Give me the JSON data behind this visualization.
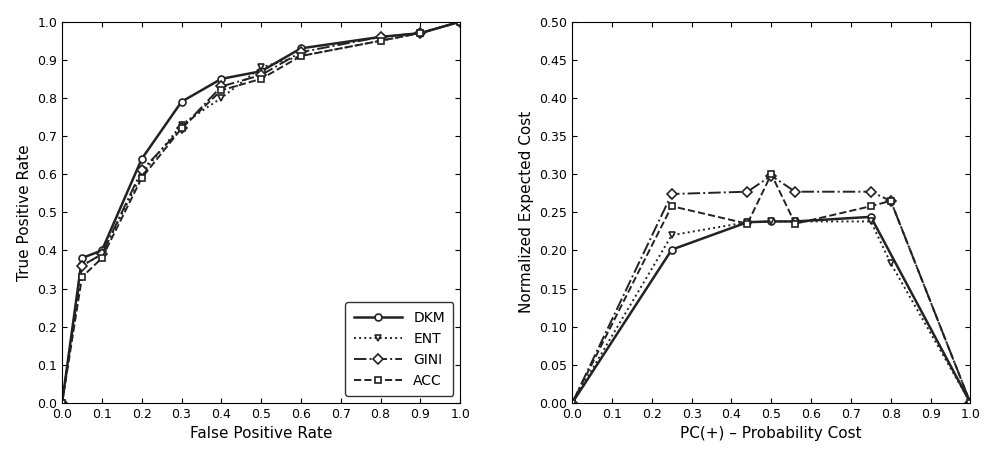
{
  "roc": {
    "DKM": {
      "fpr": [
        0.0,
        0.05,
        0.1,
        0.2,
        0.3,
        0.4,
        0.5,
        0.6,
        0.8,
        0.9,
        1.0
      ],
      "tpr": [
        0.0,
        0.38,
        0.4,
        0.64,
        0.79,
        0.85,
        0.87,
        0.93,
        0.96,
        0.97,
        1.0
      ],
      "linestyle": "-",
      "marker": "o",
      "linewidth": 1.8,
      "label": "DKM"
    },
    "ENT": {
      "fpr": [
        0.0,
        0.05,
        0.1,
        0.2,
        0.3,
        0.4,
        0.5,
        0.6,
        0.8,
        0.9,
        1.0
      ],
      "tpr": [
        0.0,
        0.36,
        0.39,
        0.6,
        0.73,
        0.8,
        0.88,
        0.91,
        0.95,
        0.97,
        1.0
      ],
      "linestyle": ":",
      "marker": "v",
      "linewidth": 1.4,
      "label": "ENT"
    },
    "GINI": {
      "fpr": [
        0.0,
        0.05,
        0.1,
        0.2,
        0.3,
        0.4,
        0.5,
        0.6,
        0.8,
        0.9,
        1.0
      ],
      "tpr": [
        0.0,
        0.36,
        0.39,
        0.61,
        0.72,
        0.83,
        0.86,
        0.92,
        0.96,
        0.97,
        1.0
      ],
      "linestyle": "-.",
      "marker": "D",
      "linewidth": 1.4,
      "label": "GINI"
    },
    "ACC": {
      "fpr": [
        0.0,
        0.05,
        0.1,
        0.2,
        0.3,
        0.4,
        0.5,
        0.6,
        0.8,
        0.9,
        1.0
      ],
      "tpr": [
        0.0,
        0.33,
        0.38,
        0.59,
        0.72,
        0.82,
        0.85,
        0.91,
        0.95,
        0.97,
        1.0
      ],
      "linestyle": "--",
      "marker": "s",
      "linewidth": 1.4,
      "label": "ACC"
    }
  },
  "cost": {
    "DKM": {
      "x": [
        0.0,
        0.25,
        0.44,
        0.5,
        0.56,
        0.75,
        1.0
      ],
      "y": [
        0.0,
        0.201,
        0.237,
        0.238,
        0.238,
        0.244,
        0.0
      ],
      "linestyle": "-",
      "marker": "o",
      "linewidth": 1.8,
      "label": "DKM"
    },
    "ENT": {
      "x": [
        0.0,
        0.25,
        0.44,
        0.5,
        0.56,
        0.75,
        0.8,
        1.0
      ],
      "y": [
        0.0,
        0.22,
        0.237,
        0.238,
        0.238,
        0.238,
        0.183,
        0.0
      ],
      "linestyle": ":",
      "marker": "v",
      "linewidth": 1.4,
      "label": "ENT"
    },
    "GINI": {
      "x": [
        0.0,
        0.25,
        0.44,
        0.5,
        0.56,
        0.75,
        0.8,
        1.0
      ],
      "y": [
        0.0,
        0.274,
        0.277,
        0.298,
        0.277,
        0.277,
        0.265,
        0.0
      ],
      "linestyle": "-.",
      "marker": "D",
      "linewidth": 1.4,
      "label": "GINI"
    },
    "ACC": {
      "x": [
        0.0,
        0.25,
        0.44,
        0.5,
        0.56,
        0.75,
        0.8,
        1.0
      ],
      "y": [
        0.0,
        0.258,
        0.235,
        0.3,
        0.235,
        0.258,
        0.265,
        0.0
      ],
      "linestyle": "--",
      "marker": "s",
      "linewidth": 1.4,
      "label": "ACC"
    }
  },
  "roc_xlabel": "False Positive Rate",
  "roc_ylabel": "True Positive Rate",
  "cost_xlabel": "PC(+) – Probability Cost",
  "cost_ylabel": "Normalized Expected Cost",
  "roc_xlim": [
    0.0,
    1.0
  ],
  "roc_ylim": [
    0.0,
    1.0
  ],
  "cost_xlim": [
    0.0,
    1.0
  ],
  "cost_ylim": [
    0.0,
    0.5
  ],
  "marker_size": 5,
  "color": "#222222"
}
